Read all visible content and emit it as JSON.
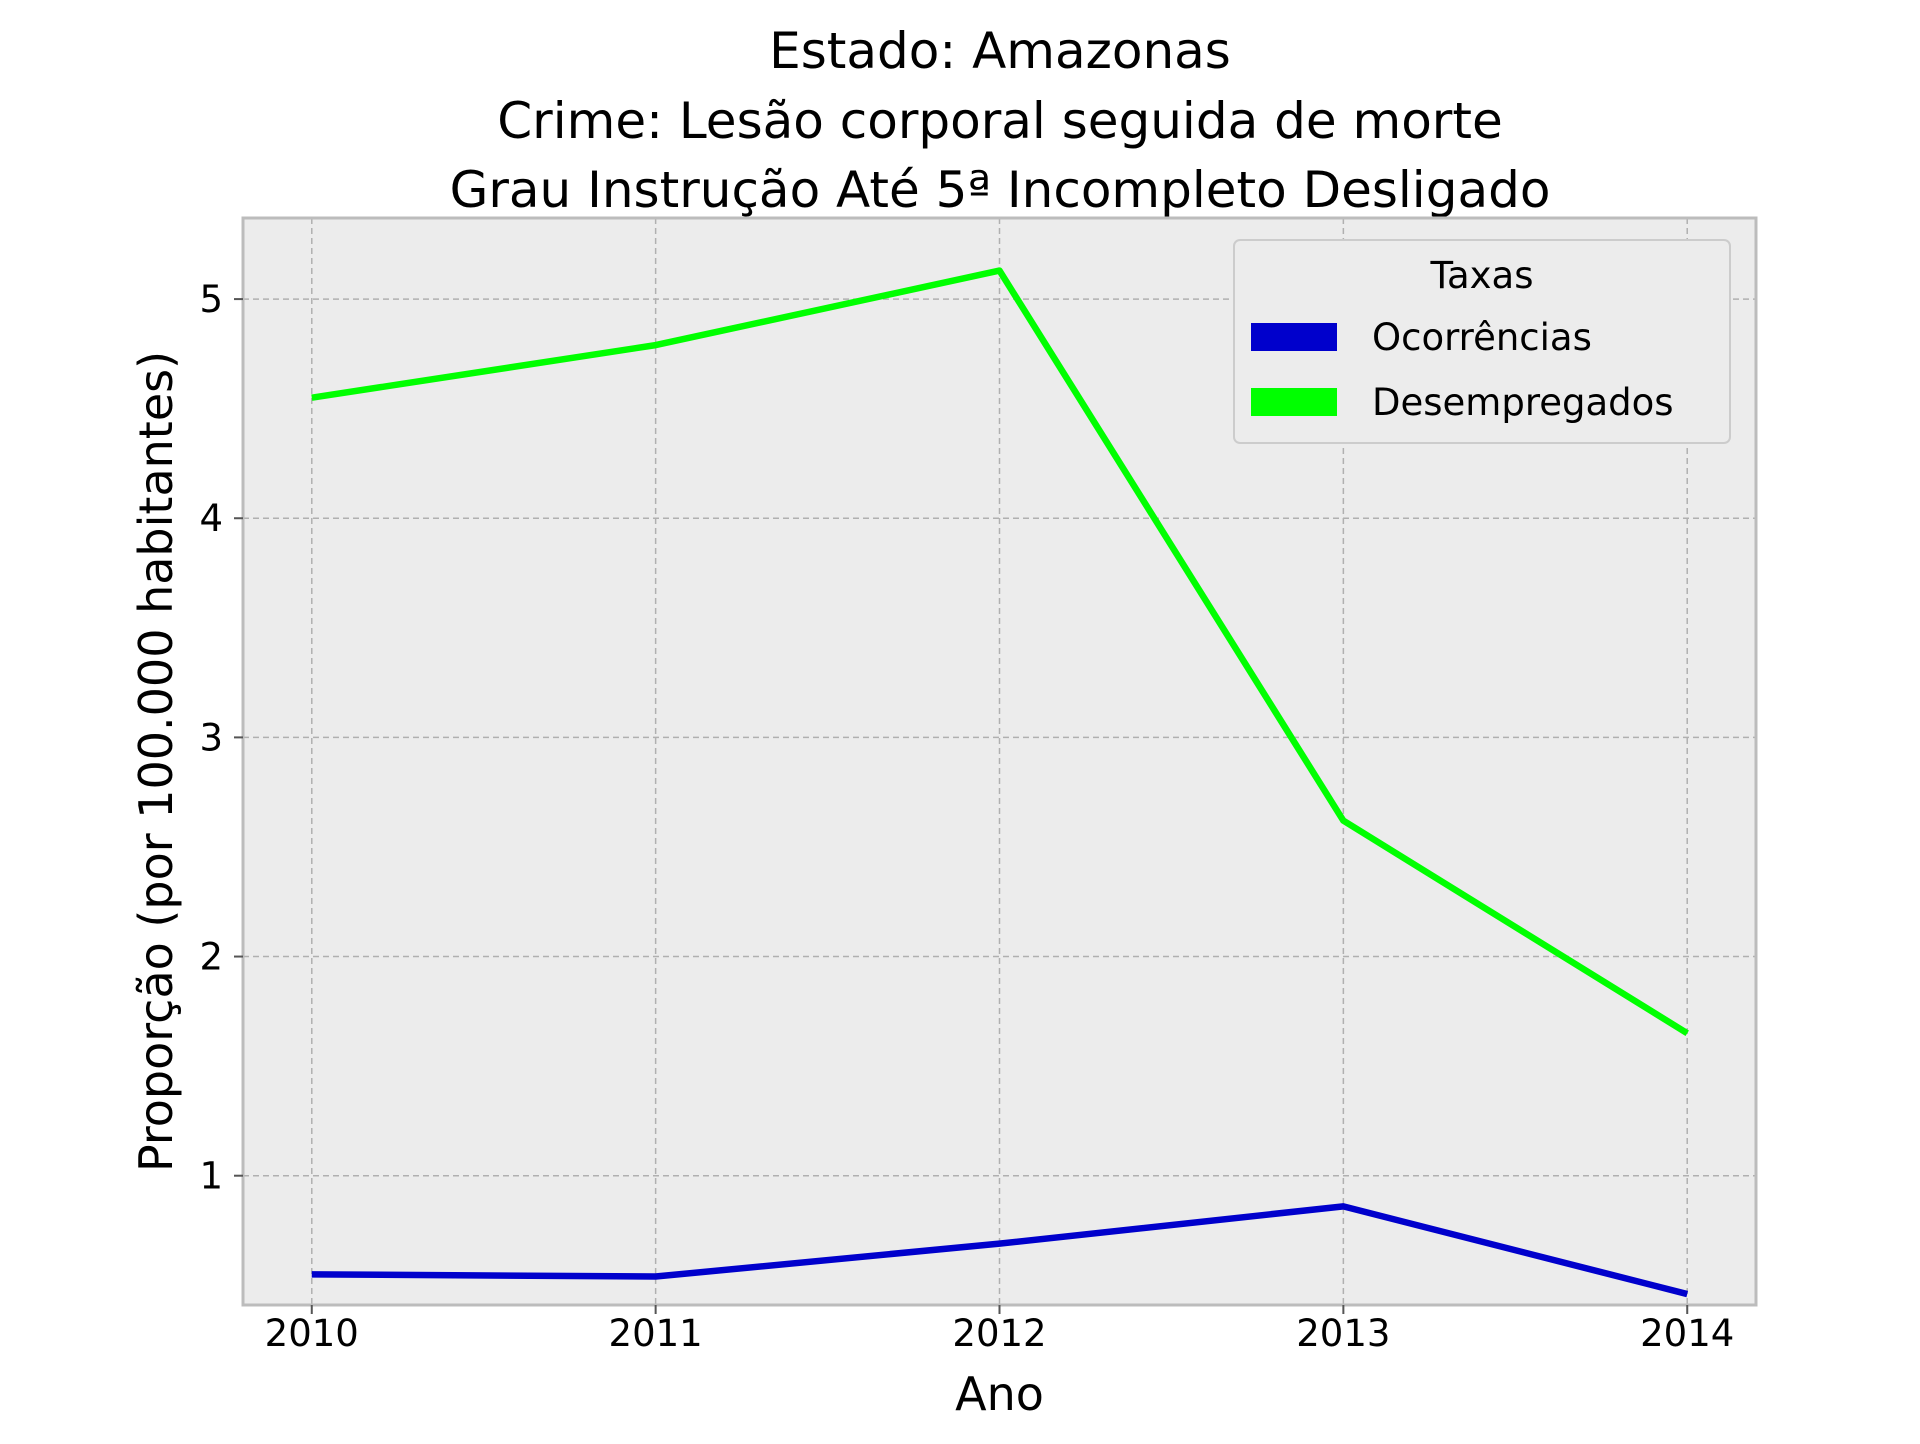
{
  "chart_data": {
    "type": "line",
    "title_lines": [
      "Estado: Amazonas",
      "Crime: Lesão corporal seguida de morte",
      "Grau Instrução  Até 5ª Incompleto   Desligado"
    ],
    "xlabel": "Ano",
    "ylabel": "Proporção (por 100.000 habitantes)",
    "x": [
      2010,
      2011,
      2012,
      2013,
      2014
    ],
    "x_tick_labels": [
      "2010",
      "2011",
      "2012",
      "2013",
      "2014"
    ],
    "y_ticks": [
      1,
      2,
      3,
      4,
      5
    ],
    "y_tick_labels": [
      "1",
      "2",
      "3",
      "4",
      "5"
    ],
    "xlim": [
      2009.8,
      2014.2
    ],
    "ylim": [
      0.41,
      5.37
    ],
    "grid": true,
    "legend": {
      "title": "Taxas",
      "position": "top-right"
    },
    "series": [
      {
        "name": "Ocorrências",
        "color": "#0000cc",
        "values": [
          0.55,
          0.54,
          0.69,
          0.86,
          0.46
        ]
      },
      {
        "name": "Desempregados",
        "color": "#00ff00",
        "values": [
          4.55,
          4.79,
          5.13,
          2.62,
          1.65
        ]
      }
    ],
    "background": "#ececec"
  }
}
